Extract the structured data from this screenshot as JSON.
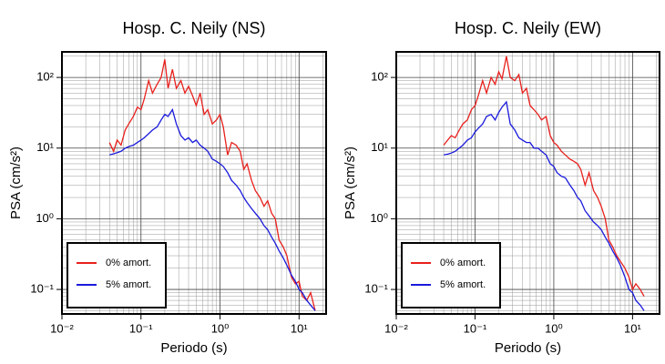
{
  "chart_data": [
    {
      "type": "line",
      "title": "Hosp. C. Neily (NS)",
      "xlabel": "Periodo (s)",
      "ylabel": "PSA (cm/s²)",
      "xscale": "log",
      "yscale": "log",
      "grid": true,
      "legend": "lower left",
      "xlim": [
        0.01,
        22
      ],
      "ylim": [
        0.045,
        230
      ],
      "xticks": [
        {
          "value": 0.01,
          "label": "10⁻²"
        },
        {
          "value": 0.1,
          "label": "10⁻¹"
        },
        {
          "value": 1,
          "label": "10⁰"
        },
        {
          "value": 10,
          "label": "10¹"
        }
      ],
      "yticks": [
        {
          "value": 0.1,
          "label": "10⁻¹"
        },
        {
          "value": 1,
          "label": "10⁰"
        },
        {
          "value": 10,
          "label": "10¹"
        },
        {
          "value": 100,
          "label": "10²"
        }
      ],
      "x": [
        0.04,
        0.045,
        0.05,
        0.056,
        0.063,
        0.07,
        0.08,
        0.09,
        0.1,
        0.11,
        0.125,
        0.14,
        0.16,
        0.18,
        0.2,
        0.22,
        0.25,
        0.28,
        0.32,
        0.36,
        0.4,
        0.45,
        0.5,
        0.56,
        0.63,
        0.7,
        0.8,
        0.9,
        1.0,
        1.1,
        1.25,
        1.4,
        1.6,
        1.8,
        2.0,
        2.2,
        2.5,
        2.8,
        3.2,
        3.6,
        4.0,
        4.5,
        5.0,
        5.6,
        6.3,
        7.0,
        8.0,
        9.0,
        10,
        11,
        12.5,
        14,
        16
      ],
      "series": [
        {
          "name": "0% amort.",
          "color": "#e8201c",
          "values": [
            12,
            9,
            13,
            11,
            18,
            22,
            28,
            38,
            35,
            50,
            90,
            60,
            80,
            100,
            180,
            70,
            130,
            70,
            90,
            60,
            75,
            55,
            40,
            60,
            30,
            35,
            22,
            25,
            30,
            20,
            8,
            12,
            11,
            9,
            5,
            6,
            3.5,
            2.5,
            2.0,
            1.5,
            1.8,
            1.2,
            1.0,
            0.5,
            0.4,
            0.3,
            0.15,
            0.12,
            0.13,
            0.08,
            0.07,
            0.09,
            0.05
          ]
        },
        {
          "name": "5% amort.",
          "color": "#1a1adc",
          "values": [
            8,
            8.3,
            8.6,
            9,
            10,
            10.5,
            11,
            12,
            13,
            14,
            16,
            18,
            20,
            25,
            30,
            28,
            35,
            22,
            15,
            13,
            14,
            12,
            13,
            11,
            10,
            9,
            7,
            6.5,
            6,
            5.5,
            4.5,
            3.5,
            3,
            2.5,
            2,
            1.7,
            1.4,
            1.2,
            1,
            0.8,
            0.7,
            0.55,
            0.45,
            0.35,
            0.28,
            0.22,
            0.16,
            0.13,
            0.1,
            0.09,
            0.07,
            0.06,
            0.05
          ]
        }
      ]
    },
    {
      "type": "line",
      "title": "Hosp. C. Neily (EW)",
      "xlabel": "Periodo (s)",
      "ylabel": "PSA (cm/s²)",
      "xscale": "log",
      "yscale": "log",
      "grid": true,
      "legend": "lower left",
      "xlim": [
        0.01,
        22
      ],
      "ylim": [
        0.045,
        230
      ],
      "xticks": [
        {
          "value": 0.01,
          "label": "10⁻²"
        },
        {
          "value": 0.1,
          "label": "10⁻¹"
        },
        {
          "value": 1,
          "label": "10⁰"
        },
        {
          "value": 10,
          "label": "10¹"
        }
      ],
      "yticks": [
        {
          "value": 0.1,
          "label": "10⁻¹"
        },
        {
          "value": 1,
          "label": "10⁰"
        },
        {
          "value": 10,
          "label": "10¹"
        },
        {
          "value": 100,
          "label": "10²"
        }
      ],
      "x": [
        0.04,
        0.045,
        0.05,
        0.056,
        0.063,
        0.07,
        0.08,
        0.09,
        0.1,
        0.11,
        0.125,
        0.14,
        0.16,
        0.18,
        0.2,
        0.22,
        0.25,
        0.28,
        0.32,
        0.36,
        0.4,
        0.45,
        0.5,
        0.56,
        0.63,
        0.7,
        0.8,
        0.9,
        1.0,
        1.1,
        1.25,
        1.4,
        1.6,
        1.8,
        2.0,
        2.2,
        2.5,
        2.8,
        3.2,
        3.6,
        4.0,
        4.5,
        5.0,
        5.6,
        6.3,
        7.0,
        8.0,
        9.0,
        10,
        11,
        12.5,
        14,
        16
      ],
      "series": [
        {
          "name": "0% amort.",
          "color": "#e8201c",
          "values": [
            11,
            13,
            15,
            14,
            18,
            22,
            25,
            35,
            40,
            55,
            90,
            60,
            100,
            80,
            120,
            95,
            200,
            100,
            90,
            110,
            60,
            70,
            40,
            35,
            30,
            25,
            28,
            15,
            12,
            11,
            9,
            8,
            7,
            6.5,
            6,
            5,
            3,
            4.5,
            2.5,
            2,
            1.5,
            1.0,
            0.5,
            0.4,
            0.3,
            0.25,
            0.2,
            0.15,
            0.1,
            0.12,
            0.1,
            0.08,
            null
          ]
        },
        {
          "name": "5% amort.",
          "color": "#1a1adc",
          "values": [
            8,
            8.2,
            8.5,
            9,
            10,
            11,
            13,
            14,
            17,
            19,
            22,
            28,
            30,
            25,
            32,
            38,
            45,
            22,
            18,
            14,
            13,
            12,
            12,
            10,
            10,
            9,
            8,
            6,
            5.5,
            4.5,
            4,
            3.8,
            3,
            2.5,
            2,
            1.8,
            1.3,
            1.1,
            0.9,
            0.8,
            0.7,
            0.55,
            0.45,
            0.35,
            0.28,
            0.22,
            0.15,
            0.1,
            0.09,
            0.07,
            0.06,
            0.05,
            null
          ]
        }
      ]
    }
  ]
}
